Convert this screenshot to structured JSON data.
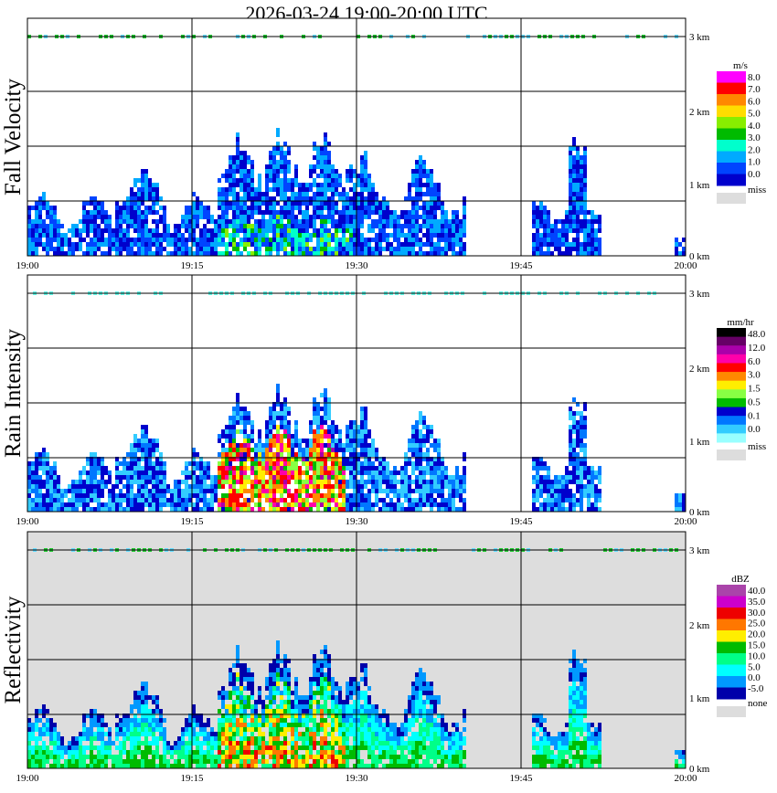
{
  "title": "2026-03-24   19:00-20:00 UTC",
  "x_ticks": [
    "19:00",
    "19:15",
    "19:30",
    "19:45",
    "20:00"
  ],
  "y_ticks": [
    "0 km",
    "1 km",
    "2 km",
    "3 km"
  ],
  "chart_data": [
    {
      "type": "heatmap",
      "title": "Fall Velocity",
      "ylabel": "Fall Velocity",
      "unit": "m/s",
      "xlim": [
        "19:00",
        "20:00"
      ],
      "ylim_km": [
        0,
        3
      ],
      "background": "#ffffff",
      "colorbar": {
        "labels": [
          "8.0",
          "7.0",
          "6.0",
          "5.0",
          "4.0",
          "3.0",
          "2.0",
          "1.0",
          "0.0"
        ],
        "colors": [
          "#ff00ff",
          "#ff0000",
          "#ff8800",
          "#ffdd00",
          "#88ee00",
          "#00bb00",
          "#00ffcc",
          "#00aaff",
          "#0044ff",
          "#0000cc"
        ],
        "miss_label": "miss",
        "miss_color": "#dddddd"
      }
    },
    {
      "type": "heatmap",
      "title": "Rain Intensity",
      "ylabel": "Rain Intensity",
      "unit": "mm/hr",
      "xlim": [
        "19:00",
        "20:00"
      ],
      "ylim_km": [
        0,
        3
      ],
      "background": "#ffffff",
      "colorbar": {
        "labels": [
          "48.0",
          "12.0",
          "6.0",
          "3.0",
          "1.5",
          "0.5",
          "0.1",
          "0.0"
        ],
        "colors": [
          "#000000",
          "#660066",
          "#aa00aa",
          "#ff00aa",
          "#ff0000",
          "#ff8800",
          "#ffee00",
          "#88ff44",
          "#00bb00",
          "#0000cc",
          "#0077ff",
          "#33ccff",
          "#99ffff"
        ],
        "miss_label": "miss",
        "miss_color": "#dddddd"
      }
    },
    {
      "type": "heatmap",
      "title": "Reflectivity",
      "ylabel": "Reflectivity",
      "unit": "dBZ",
      "xlim": [
        "19:00",
        "20:00"
      ],
      "ylim_km": [
        0,
        3
      ],
      "background": "#dddddd",
      "colorbar": {
        "labels": [
          "40.0",
          "35.0",
          "30.0",
          "25.0",
          "20.0",
          "15.0",
          "10.0",
          "5.0",
          "0.0",
          "-5.0"
        ],
        "colors": [
          "#aa44aa",
          "#cc00cc",
          "#ee0000",
          "#ff7700",
          "#ffee00",
          "#00bb00",
          "#00ff88",
          "#00ffff",
          "#0099ff",
          "#0000aa"
        ],
        "miss_label": "none",
        "miss_color": "#dddddd"
      }
    }
  ]
}
